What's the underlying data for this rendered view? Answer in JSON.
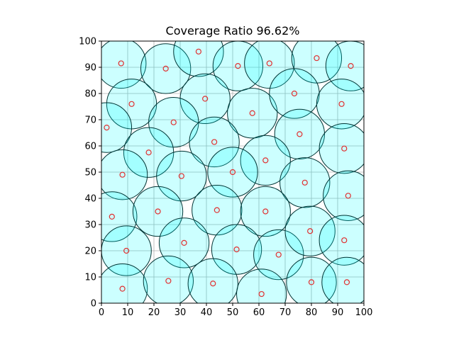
{
  "chart_data": {
    "type": "scatter",
    "title": "Coverage Ratio 96.62%",
    "xlabel": "",
    "ylabel": "",
    "xlim": [
      0,
      100
    ],
    "ylim": [
      0,
      100
    ],
    "xticks": [
      0,
      10,
      20,
      30,
      40,
      50,
      60,
      70,
      80,
      90,
      100
    ],
    "yticks": [
      0,
      10,
      20,
      30,
      40,
      50,
      60,
      70,
      80,
      90,
      100
    ],
    "grid": true,
    "aspect": "equal",
    "coverage_radius": 9.5,
    "colors": {
      "circle_fill": "#00ffff",
      "circle_edge": "#003333",
      "point_edge": "#e03030",
      "grid": "#b0b0b0"
    },
    "points": [
      [
        7.5,
        91.5
      ],
      [
        24.5,
        89.5
      ],
      [
        37,
        96
      ],
      [
        52,
        90.5
      ],
      [
        64,
        91.5
      ],
      [
        82,
        93.5
      ],
      [
        95,
        90.5
      ],
      [
        11.5,
        76
      ],
      [
        39.5,
        78
      ],
      [
        57.5,
        72.5
      ],
      [
        73.5,
        80
      ],
      [
        91.5,
        76
      ],
      [
        2,
        67
      ],
      [
        27.5,
        69
      ],
      [
        75.5,
        64.5
      ],
      [
        18,
        57.5
      ],
      [
        43,
        61.5
      ],
      [
        62.5,
        54.5
      ],
      [
        92.5,
        59
      ],
      [
        8,
        49
      ],
      [
        30.5,
        48.5
      ],
      [
        50,
        50
      ],
      [
        77.5,
        46
      ],
      [
        4,
        33
      ],
      [
        21.5,
        35
      ],
      [
        44,
        35.5
      ],
      [
        62.5,
        35
      ],
      [
        94,
        41
      ],
      [
        31.5,
        23
      ],
      [
        51.5,
        20.5
      ],
      [
        67.5,
        18.5
      ],
      [
        79.5,
        27.5
      ],
      [
        92.5,
        24
      ],
      [
        9.5,
        20
      ],
      [
        8,
        5.5
      ],
      [
        25.5,
        8.5
      ],
      [
        42.5,
        7.5
      ],
      [
        61,
        3.5
      ],
      [
        80,
        8
      ],
      [
        93.5,
        8
      ]
    ]
  }
}
